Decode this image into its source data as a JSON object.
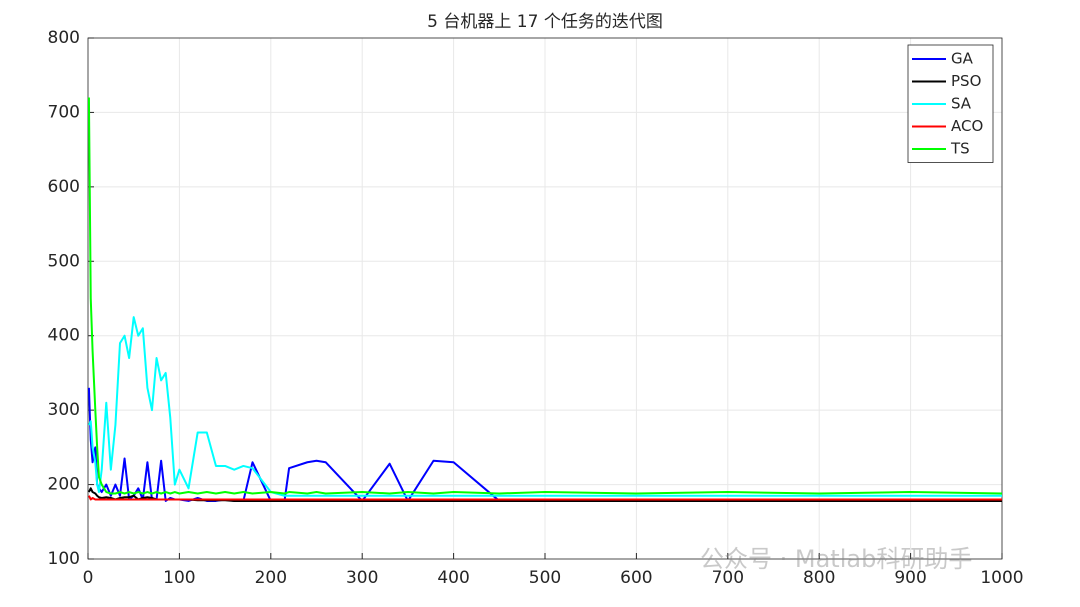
{
  "chart_data": {
    "type": "line",
    "title": "5 台机器上 17 个任务的迭代图",
    "x": [
      1,
      3,
      5,
      8,
      10,
      12,
      15,
      20,
      25,
      30,
      35,
      40,
      45,
      50,
      55,
      60,
      65,
      70,
      75,
      80,
      85,
      90,
      95,
      100,
      110,
      120,
      130,
      140,
      150,
      160,
      170,
      180,
      200,
      215,
      220,
      240,
      250,
      260,
      300,
      330,
      350,
      378,
      400,
      450,
      500,
      600,
      700,
      800,
      900,
      1000
    ],
    "series": [
      {
        "name": "GA",
        "color": "#0000ff",
        "values": [
          330,
          260,
          230,
          250,
          200,
          195,
          190,
          200,
          185,
          200,
          185,
          235,
          180,
          185,
          195,
          180,
          230,
          180,
          180,
          232,
          178,
          182,
          180,
          180,
          178,
          182,
          178,
          178,
          180,
          178,
          178,
          230,
          178,
          178,
          222,
          230,
          232,
          230,
          178,
          228,
          178,
          232,
          230,
          178,
          178,
          178,
          178,
          178,
          178,
          178
        ]
      },
      {
        "name": "PSO",
        "color": "#000000",
        "values": [
          190,
          195,
          190,
          188,
          185,
          183,
          182,
          183,
          182,
          180,
          182,
          183,
          183,
          185,
          180,
          182,
          183,
          182,
          180,
          180,
          180,
          180,
          180,
          180,
          180,
          179,
          179,
          179,
          179,
          178,
          178,
          178,
          178,
          178,
          178,
          178,
          178,
          178,
          178,
          178,
          178,
          178,
          178,
          178,
          178,
          178,
          178,
          178,
          178,
          178
        ]
      },
      {
        "name": "SA",
        "color": "#00ffff",
        "values": [
          280,
          285,
          250,
          230,
          200,
          190,
          220,
          310,
          220,
          280,
          390,
          400,
          370,
          425,
          400,
          410,
          330,
          300,
          370,
          340,
          350,
          290,
          200,
          220,
          195,
          270,
          270,
          225,
          225,
          220,
          225,
          222,
          190,
          185,
          185,
          185,
          185,
          185,
          185,
          185,
          185,
          185,
          185,
          185,
          185,
          185,
          185,
          185,
          185,
          185
        ]
      },
      {
        "name": "ACO",
        "color": "#ff0000",
        "values": [
          185,
          180,
          182,
          180,
          180,
          180,
          180,
          180,
          180,
          180,
          180,
          180,
          180,
          180,
          180,
          180,
          180,
          180,
          180,
          180,
          180,
          180,
          180,
          180,
          180,
          180,
          180,
          180,
          180,
          180,
          180,
          180,
          180,
          180,
          180,
          180,
          180,
          180,
          180,
          180,
          180,
          180,
          180,
          180,
          180,
          180,
          180,
          180,
          180,
          180
        ]
      },
      {
        "name": "TS",
        "color": "#00ff00",
        "values": [
          720,
          450,
          380,
          300,
          250,
          210,
          200,
          190,
          188,
          188,
          190,
          188,
          190,
          188,
          190,
          188,
          190,
          188,
          190,
          188,
          190,
          188,
          190,
          188,
          190,
          188,
          190,
          188,
          190,
          188,
          190,
          188,
          190,
          188,
          190,
          188,
          190,
          188,
          190,
          188,
          190,
          188,
          190,
          188,
          190,
          188,
          190,
          188,
          190,
          188
        ]
      }
    ],
    "xlim": [
      0,
      1000
    ],
    "xticks": [
      0,
      100,
      200,
      300,
      400,
      500,
      600,
      700,
      800,
      900,
      1000
    ],
    "ylim": [
      100,
      800
    ],
    "yticks": [
      100,
      200,
      300,
      400,
      500,
      600,
      700,
      800
    ],
    "grid": true,
    "legend": "upper right",
    "watermark": "公众号 · Matlab科研助手"
  }
}
